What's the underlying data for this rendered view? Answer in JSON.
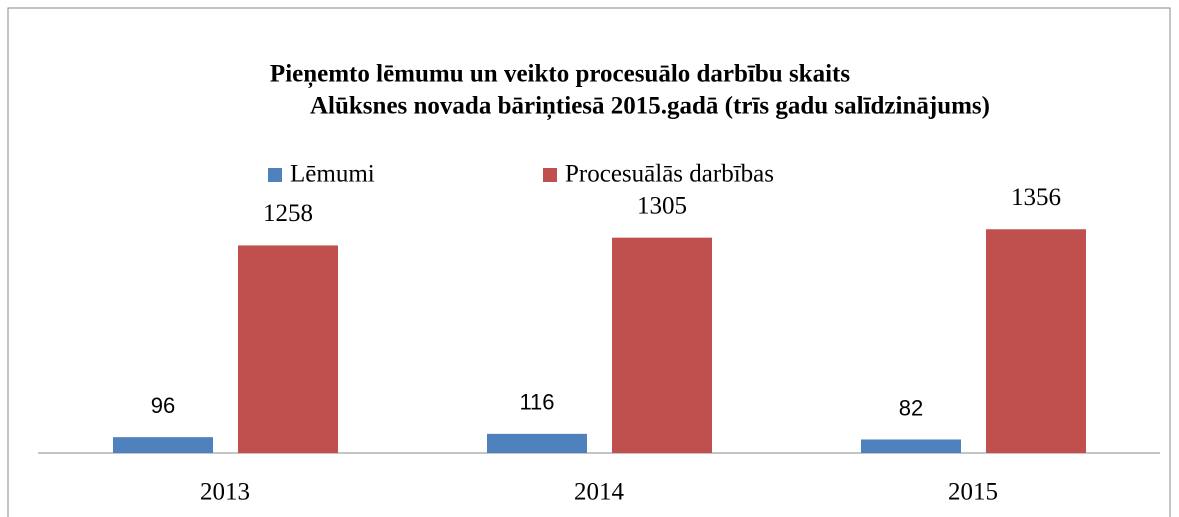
{
  "chart_data": {
    "type": "bar",
    "title": [
      "Pieņemto lēmumu un veikto procesuālo darbību skaits",
      "Alūksnes novada bāriņtiesā 2015.gadā (trīs gadu salīdzinājums)"
    ],
    "categories": [
      "2013",
      "2014",
      "2015"
    ],
    "series": [
      {
        "name": "Lēmumi",
        "color": "#4f81bd",
        "values": [
          96,
          116,
          82
        ]
      },
      {
        "name": "Procesuālās darbības",
        "color": "#c0504d",
        "values": [
          1258,
          1305,
          1356
        ]
      }
    ],
    "ylim": [
      0,
      1600
    ]
  }
}
